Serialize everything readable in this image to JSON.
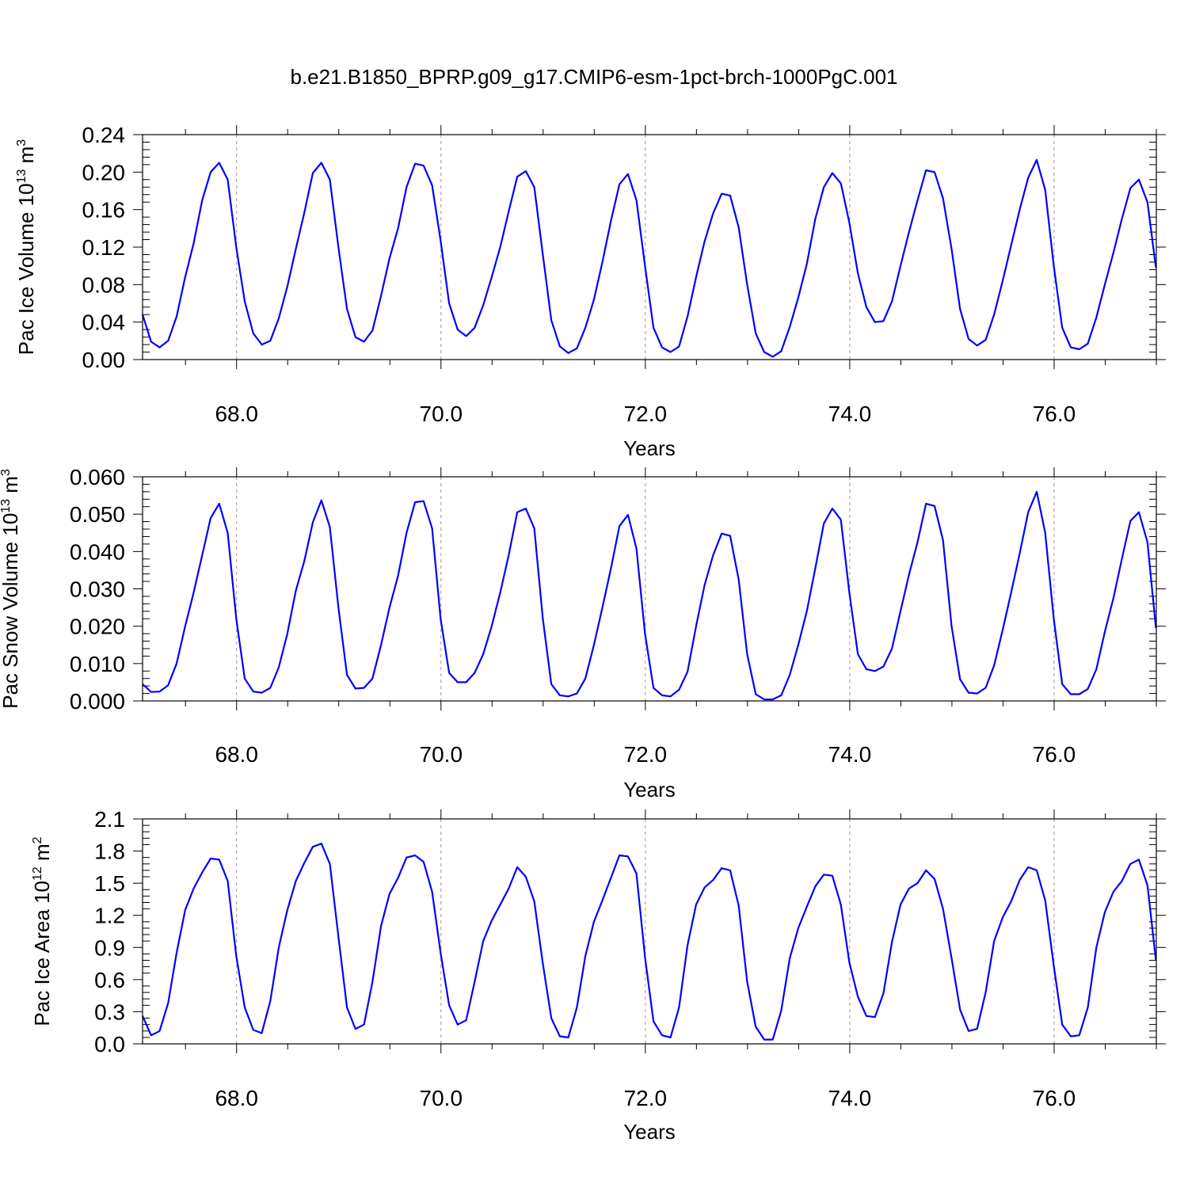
{
  "title": "b.e21.B1850_BPRP.g09_g17.CMIP6-esm-1pct-brch-1000PgC.001",
  "colors": {
    "series": "#0000ff",
    "frame": "#000000",
    "grid": "#999999"
  },
  "chart_data": [
    {
      "type": "line",
      "title": "b.e21.B1850_BPRP.g09_g17.CMIP6-esm-1pct-brch-1000PgC.001",
      "xlabel": "Years",
      "ylabel_base": "Pac Ice Volume 10",
      "ylabel_exp": "13",
      "ylabel_unit": " m",
      "ylabel_unit_exp": "3",
      "xlim": [
        67.08,
        77.0
      ],
      "ylim": [
        0.0,
        0.24
      ],
      "xticks": [
        68.0,
        70.0,
        72.0,
        74.0,
        76.0
      ],
      "xtick_labels": [
        "68.0",
        "70.0",
        "72.0",
        "74.0",
        "76.0"
      ],
      "yticks": [
        0.0,
        0.04,
        0.08,
        0.12,
        0.16,
        0.2,
        0.24
      ],
      "ytick_labels": [
        "0.00",
        "0.04",
        "0.08",
        "0.12",
        "0.16",
        "0.20",
        "0.24"
      ],
      "x_start": 67.08,
      "x_step": 0.08333,
      "grid": "vertical dashed at major x ticks",
      "values": [
        0.048,
        0.019,
        0.013,
        0.02,
        0.046,
        0.088,
        0.124,
        0.17,
        0.2,
        0.21,
        0.192,
        0.12,
        0.062,
        0.028,
        0.016,
        0.02,
        0.044,
        0.078,
        0.118,
        0.157,
        0.199,
        0.21,
        0.192,
        0.12,
        0.054,
        0.024,
        0.019,
        0.031,
        0.068,
        0.108,
        0.14,
        0.184,
        0.209,
        0.207,
        0.186,
        0.127,
        0.06,
        0.032,
        0.025,
        0.034,
        0.058,
        0.088,
        0.12,
        0.158,
        0.195,
        0.201,
        0.184,
        0.112,
        0.042,
        0.014,
        0.007,
        0.012,
        0.034,
        0.064,
        0.104,
        0.148,
        0.187,
        0.198,
        0.17,
        0.1,
        0.034,
        0.013,
        0.008,
        0.014,
        0.046,
        0.088,
        0.126,
        0.156,
        0.177,
        0.175,
        0.141,
        0.08,
        0.028,
        0.008,
        0.003,
        0.009,
        0.035,
        0.066,
        0.102,
        0.15,
        0.184,
        0.199,
        0.188,
        0.146,
        0.092,
        0.056,
        0.04,
        0.041,
        0.062,
        0.1,
        0.136,
        0.17,
        0.202,
        0.2,
        0.172,
        0.118,
        0.054,
        0.022,
        0.015,
        0.021,
        0.048,
        0.084,
        0.122,
        0.16,
        0.194,
        0.213,
        0.181,
        0.1,
        0.034,
        0.013,
        0.011,
        0.017,
        0.045,
        0.08,
        0.114,
        0.15,
        0.183,
        0.192,
        0.168,
        0.098
      ]
    },
    {
      "type": "line",
      "xlabel": "Years",
      "ylabel_base": "Pac Snow Volume 10",
      "ylabel_exp": "13",
      "ylabel_unit": " m",
      "ylabel_unit_exp": "3",
      "xlim": [
        67.08,
        77.0
      ],
      "ylim": [
        0.0,
        0.06
      ],
      "xticks": [
        68.0,
        70.0,
        72.0,
        74.0,
        76.0
      ],
      "xtick_labels": [
        "68.0",
        "70.0",
        "72.0",
        "74.0",
        "76.0"
      ],
      "yticks": [
        0.0,
        0.01,
        0.02,
        0.03,
        0.04,
        0.05,
        0.06
      ],
      "ytick_labels": [
        "0.000",
        "0.010",
        "0.020",
        "0.030",
        "0.040",
        "0.050",
        "0.060"
      ],
      "x_start": 67.08,
      "x_step": 0.08333,
      "grid": "vertical dashed at major x ticks",
      "values": [
        0.0045,
        0.0024,
        0.0025,
        0.0042,
        0.01,
        0.02,
        0.029,
        0.039,
        0.049,
        0.0528,
        0.045,
        0.022,
        0.006,
        0.0025,
        0.0022,
        0.0035,
        0.009,
        0.018,
        0.0295,
        0.0375,
        0.0478,
        0.0537,
        0.0465,
        0.025,
        0.007,
        0.0033,
        0.0035,
        0.006,
        0.015,
        0.025,
        0.0335,
        0.045,
        0.0532,
        0.0535,
        0.0462,
        0.022,
        0.0075,
        0.005,
        0.005,
        0.0075,
        0.0125,
        0.02,
        0.029,
        0.039,
        0.0505,
        0.0515,
        0.0462,
        0.022,
        0.0045,
        0.0015,
        0.0012,
        0.002,
        0.006,
        0.015,
        0.025,
        0.0355,
        0.0468,
        0.0498,
        0.0408,
        0.018,
        0.0035,
        0.0015,
        0.0012,
        0.003,
        0.0078,
        0.02,
        0.031,
        0.039,
        0.0448,
        0.0442,
        0.0325,
        0.0125,
        0.0018,
        0.0004,
        0.0004,
        0.0015,
        0.007,
        0.015,
        0.024,
        0.0355,
        0.0475,
        0.0515,
        0.0485,
        0.029,
        0.0125,
        0.0085,
        0.008,
        0.0092,
        0.014,
        0.024,
        0.0338,
        0.0425,
        0.0528,
        0.0522,
        0.043,
        0.02,
        0.0058,
        0.0022,
        0.002,
        0.0035,
        0.0095,
        0.019,
        0.029,
        0.0395,
        0.0505,
        0.056,
        0.045,
        0.022,
        0.0045,
        0.0018,
        0.0018,
        0.0032,
        0.0085,
        0.0185,
        0.0275,
        0.038,
        0.0482,
        0.0505,
        0.0425,
        0.0195
      ]
    },
    {
      "type": "line",
      "xlabel": "Years",
      "ylabel_base": "Pac Ice Area 10",
      "ylabel_exp": "12",
      "ylabel_unit": " m",
      "ylabel_unit_exp": "2",
      "xlim": [
        67.08,
        77.0
      ],
      "ylim": [
        0.0,
        2.1
      ],
      "xticks": [
        68.0,
        70.0,
        72.0,
        74.0,
        76.0
      ],
      "xtick_labels": [
        "68.0",
        "70.0",
        "72.0",
        "74.0",
        "76.0"
      ],
      "yticks": [
        0.0,
        0.3,
        0.6,
        0.9,
        1.2,
        1.5,
        1.8,
        2.1
      ],
      "ytick_labels": [
        "0.0",
        "0.3",
        "0.6",
        "0.9",
        "1.2",
        "1.5",
        "1.8",
        "2.1"
      ],
      "x_start": 67.08,
      "x_step": 0.08333,
      "grid": "vertical dashed at major x ticks",
      "values": [
        0.26,
        0.08,
        0.12,
        0.38,
        0.85,
        1.25,
        1.45,
        1.6,
        1.73,
        1.72,
        1.52,
        0.82,
        0.34,
        0.13,
        0.1,
        0.4,
        0.9,
        1.25,
        1.52,
        1.69,
        1.84,
        1.87,
        1.68,
        1.0,
        0.34,
        0.14,
        0.18,
        0.58,
        1.1,
        1.4,
        1.55,
        1.74,
        1.76,
        1.7,
        1.42,
        0.85,
        0.36,
        0.18,
        0.22,
        0.58,
        0.96,
        1.15,
        1.3,
        1.45,
        1.65,
        1.56,
        1.33,
        0.75,
        0.24,
        0.07,
        0.06,
        0.34,
        0.82,
        1.14,
        1.34,
        1.55,
        1.76,
        1.75,
        1.59,
        0.81,
        0.21,
        0.08,
        0.06,
        0.34,
        0.92,
        1.3,
        1.46,
        1.53,
        1.64,
        1.62,
        1.29,
        0.58,
        0.16,
        0.04,
        0.04,
        0.31,
        0.8,
        1.08,
        1.28,
        1.47,
        1.58,
        1.57,
        1.3,
        0.76,
        0.44,
        0.26,
        0.25,
        0.47,
        0.95,
        1.3,
        1.45,
        1.5,
        1.62,
        1.54,
        1.26,
        0.8,
        0.32,
        0.12,
        0.14,
        0.48,
        0.96,
        1.18,
        1.33,
        1.53,
        1.65,
        1.62,
        1.34,
        0.73,
        0.18,
        0.07,
        0.08,
        0.34,
        0.9,
        1.23,
        1.42,
        1.52,
        1.68,
        1.72,
        1.48,
        0.78
      ]
    }
  ]
}
